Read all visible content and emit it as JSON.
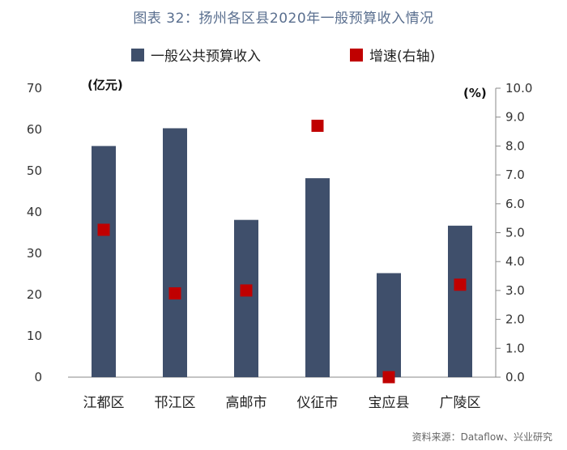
{
  "title": "图表 32：扬州各区县2020年一般预算收入情况",
  "source": "资料来源：Dataflow、兴业研究",
  "colors": {
    "bar": "#3f4f6b",
    "marker": "#c00000",
    "axis": "#888888",
    "title": "#5a6f8f"
  },
  "chart_data": {
    "type": "bar",
    "categories": [
      "江都区",
      "邗江区",
      "高邮市",
      "仪征市",
      "宝应县",
      "广陵区"
    ],
    "series": [
      {
        "name": "一般公共预算收入",
        "type": "bar",
        "axis": "left",
        "values": [
          56.0,
          60.3,
          38.1,
          48.2,
          25.2,
          36.7
        ]
      },
      {
        "name": "增速(右轴)",
        "type": "scatter",
        "axis": "right",
        "values": [
          5.1,
          2.9,
          3.0,
          8.7,
          0.0,
          3.2
        ]
      }
    ],
    "y_left": {
      "unit": "(亿元)",
      "ylim": [
        0,
        70
      ],
      "ticks": [
        "0",
        "10",
        "20",
        "30",
        "40",
        "50",
        "60",
        "70"
      ]
    },
    "y_right": {
      "unit": "(%)",
      "ylim": [
        0,
        10
      ],
      "ticks": [
        "0.0",
        "1.0",
        "2.0",
        "3.0",
        "4.0",
        "5.0",
        "6.0",
        "7.0",
        "8.0",
        "9.0",
        "10.0"
      ]
    },
    "grid": false,
    "legend_position": "top"
  }
}
